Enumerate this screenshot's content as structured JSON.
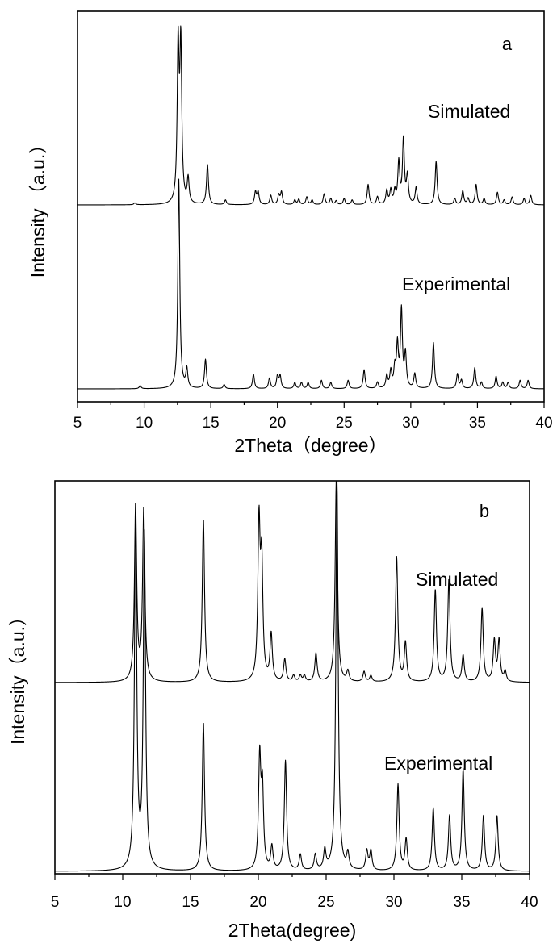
{
  "chart_data": [
    {
      "type": "line",
      "panel_label": "a",
      "xlabel": "2Theta（degree）",
      "ylabel": "Intensity （a.u.）",
      "xlim": [
        5,
        40
      ],
      "xticks": [
        5,
        10,
        15,
        20,
        25,
        30,
        35,
        40
      ],
      "yaxis_ticks_shown": false,
      "series": [
        {
          "name": "Simulated",
          "peaks": [
            [
              9.3,
              0.012
            ],
            [
              12.55,
              1.0
            ],
            [
              12.75,
              1.0
            ],
            [
              13.3,
              0.16
            ],
            [
              14.75,
              0.26
            ],
            [
              16.1,
              0.03
            ],
            [
              18.35,
              0.08
            ],
            [
              18.55,
              0.08
            ],
            [
              19.5,
              0.06
            ],
            [
              20.1,
              0.06
            ],
            [
              20.3,
              0.08
            ],
            [
              21.3,
              0.03
            ],
            [
              21.6,
              0.035
            ],
            [
              22.2,
              0.05
            ],
            [
              22.6,
              0.03
            ],
            [
              23.5,
              0.07
            ],
            [
              24.0,
              0.04
            ],
            [
              24.4,
              0.025
            ],
            [
              25.0,
              0.04
            ],
            [
              25.6,
              0.03
            ],
            [
              26.8,
              0.13
            ],
            [
              27.5,
              0.05
            ],
            [
              28.2,
              0.09
            ],
            [
              28.5,
              0.09
            ],
            [
              28.8,
              0.08
            ],
            [
              29.1,
              0.27
            ],
            [
              29.45,
              0.42
            ],
            [
              29.75,
              0.18
            ],
            [
              30.4,
              0.11
            ],
            [
              31.9,
              0.28
            ],
            [
              33.3,
              0.04
            ],
            [
              33.9,
              0.09
            ],
            [
              34.3,
              0.04
            ],
            [
              34.9,
              0.13
            ],
            [
              35.5,
              0.04
            ],
            [
              36.5,
              0.08
            ],
            [
              37.0,
              0.03
            ],
            [
              37.6,
              0.05
            ],
            [
              38.5,
              0.04
            ],
            [
              39.0,
              0.06
            ]
          ]
        },
        {
          "name": "Experimental",
          "peaks": [
            [
              9.7,
              0.015
            ],
            [
              12.6,
              1.0
            ],
            [
              13.2,
              0.09
            ],
            [
              14.6,
              0.14
            ],
            [
              16.0,
              0.02
            ],
            [
              18.2,
              0.07
            ],
            [
              19.4,
              0.05
            ],
            [
              20.0,
              0.06
            ],
            [
              20.2,
              0.06
            ],
            [
              21.3,
              0.03
            ],
            [
              21.8,
              0.03
            ],
            [
              22.3,
              0.03
            ],
            [
              23.3,
              0.04
            ],
            [
              24.0,
              0.03
            ],
            [
              25.3,
              0.04
            ],
            [
              26.5,
              0.09
            ],
            [
              27.5,
              0.03
            ],
            [
              28.2,
              0.06
            ],
            [
              28.5,
              0.08
            ],
            [
              28.8,
              0.09
            ],
            [
              29.0,
              0.2
            ],
            [
              29.3,
              0.37
            ],
            [
              29.6,
              0.16
            ],
            [
              30.3,
              0.07
            ],
            [
              31.7,
              0.22
            ],
            [
              33.5,
              0.07
            ],
            [
              33.8,
              0.04
            ],
            [
              34.8,
              0.1
            ],
            [
              35.3,
              0.03
            ],
            [
              36.4,
              0.06
            ],
            [
              36.9,
              0.03
            ],
            [
              37.3,
              0.03
            ],
            [
              38.2,
              0.04
            ],
            [
              38.8,
              0.04
            ]
          ]
        }
      ]
    },
    {
      "type": "line",
      "panel_label": "b",
      "xlabel": "2Theta(degree)",
      "ylabel": "Intensity（a.u.）",
      "xlim": [
        5,
        40
      ],
      "xticks": [
        5,
        10,
        15,
        20,
        25,
        30,
        35,
        40
      ],
      "yaxis_ticks_shown": false,
      "series": [
        {
          "name": "Simulated",
          "peaks": [
            [
              10.95,
              0.86
            ],
            [
              11.55,
              0.84
            ],
            [
              15.95,
              0.8
            ],
            [
              20.05,
              0.75
            ],
            [
              20.25,
              0.55
            ],
            [
              20.95,
              0.23
            ],
            [
              21.95,
              0.11
            ],
            [
              22.6,
              0.03
            ],
            [
              23.1,
              0.03
            ],
            [
              23.4,
              0.03
            ],
            [
              24.25,
              0.14
            ],
            [
              25.75,
              1.0
            ],
            [
              26.6,
              0.05
            ],
            [
              27.8,
              0.05
            ],
            [
              28.3,
              0.03
            ],
            [
              30.2,
              0.61
            ],
            [
              30.85,
              0.19
            ],
            [
              33.05,
              0.45
            ],
            [
              34.05,
              0.5
            ],
            [
              35.1,
              0.13
            ],
            [
              36.5,
              0.36
            ],
            [
              37.4,
              0.2
            ],
            [
              37.75,
              0.2
            ],
            [
              38.2,
              0.05
            ]
          ]
        },
        {
          "name": "Experimental",
          "peaks": [
            [
              10.95,
              0.9
            ],
            [
              11.6,
              0.85
            ],
            [
              15.95,
              0.38
            ],
            [
              20.1,
              0.28
            ],
            [
              20.3,
              0.2
            ],
            [
              21.0,
              0.06
            ],
            [
              22.0,
              0.28
            ],
            [
              23.1,
              0.04
            ],
            [
              24.2,
              0.04
            ],
            [
              24.9,
              0.05
            ],
            [
              25.8,
              1.0
            ],
            [
              26.6,
              0.04
            ],
            [
              28.0,
              0.05
            ],
            [
              28.3,
              0.05
            ],
            [
              30.3,
              0.22
            ],
            [
              30.9,
              0.08
            ],
            [
              32.9,
              0.16
            ],
            [
              34.1,
              0.14
            ],
            [
              35.1,
              0.26
            ],
            [
              36.6,
              0.14
            ],
            [
              37.6,
              0.14
            ]
          ]
        }
      ]
    }
  ]
}
